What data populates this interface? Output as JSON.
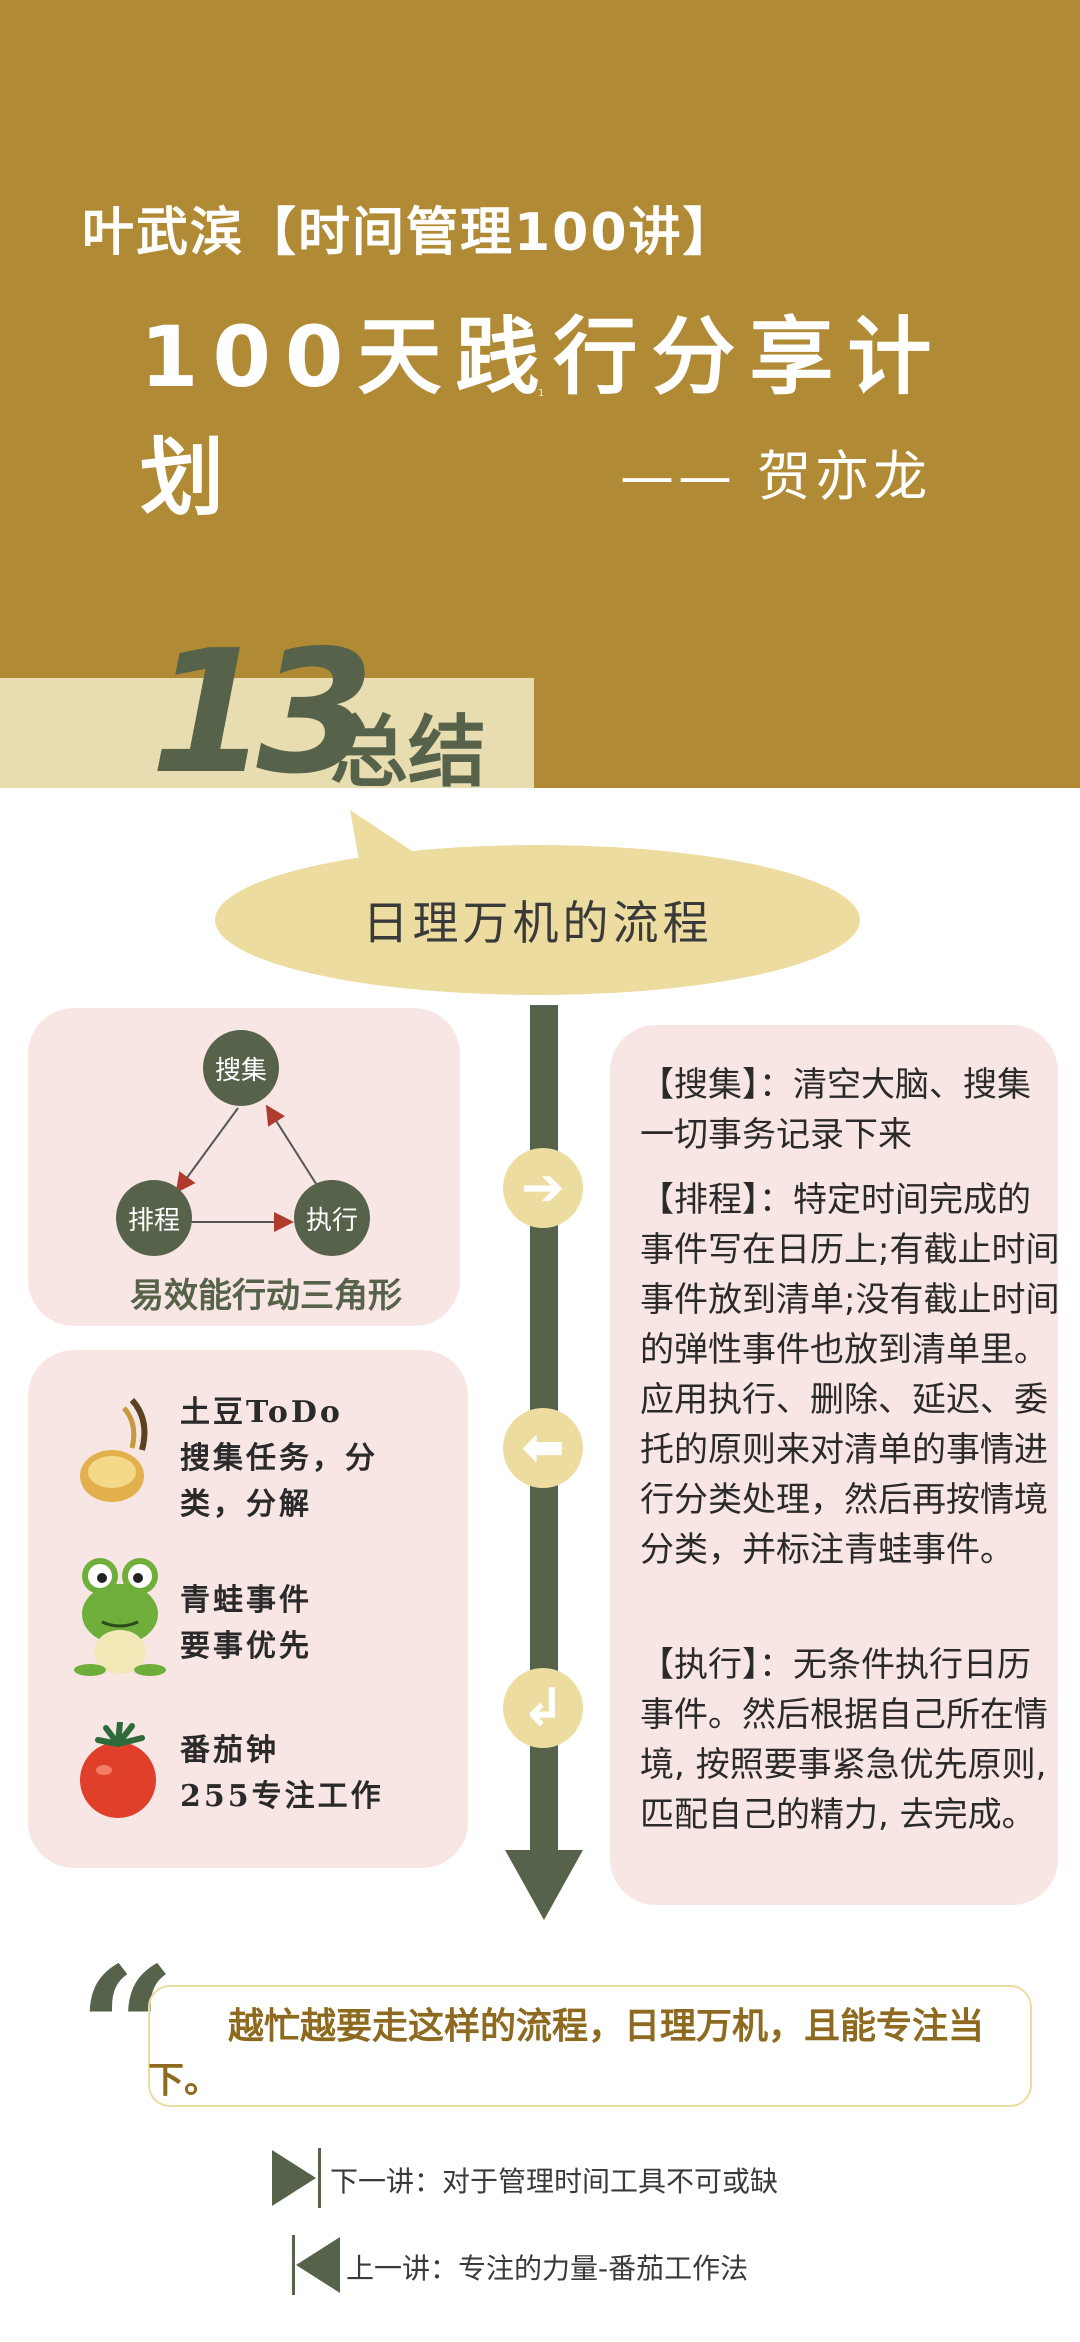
{
  "header": {
    "series_title": "叶武滨【时间管理100讲】",
    "main_title": "100天践行分享计划",
    "small_mark": "1",
    "author": "—— 贺亦龙"
  },
  "lesson": {
    "number": "13",
    "label": "总结"
  },
  "bubble": {
    "title": "日理万机的流程"
  },
  "triangle": {
    "top": "搜集",
    "left": "排程",
    "right": "执行",
    "caption": "易效能行动三角形"
  },
  "tools": [
    {
      "icon": "potato-icon",
      "line1": "土豆ToDo",
      "line2": "搜集任务，分",
      "line3": "类，分解"
    },
    {
      "icon": "frog-icon",
      "line1": "青蛙事件",
      "line2": "要事优先"
    },
    {
      "icon": "tomato-icon",
      "line1": "番茄钟",
      "line2": "255专注工作"
    }
  ],
  "steps": {
    "collect": "【搜集】：清空大脑、搜集一切事务记录下来",
    "schedule": "【排程】：特定时间完成的事件写在日历上;有截止时间事件放到清单;没有截止时间的弹性事件也放到清单里。应用执行、删除、延迟、委托的原则来对清单的事情进行分类处理，然后再按情境分类，并标注青蛙事件。",
    "execute": "【执行】：无条件执行日历事件。然后根据自己所在情境, 按照要事紧急优先原则, 匹配自己的精力, 去完成。"
  },
  "quote": {
    "mark": "“",
    "text": "越忙越要走这样的流程，日理万机，且能专注当下。"
  },
  "nav": {
    "next": "下一讲：对于管理时间工具不可或缺",
    "prev": "上一讲：专注的力量-番茄工作法"
  },
  "colors": {
    "header_bg": "#b08a35",
    "accent_green": "#57624a",
    "bubble": "#ecdca0",
    "card_pink": "#f8e6e4"
  }
}
